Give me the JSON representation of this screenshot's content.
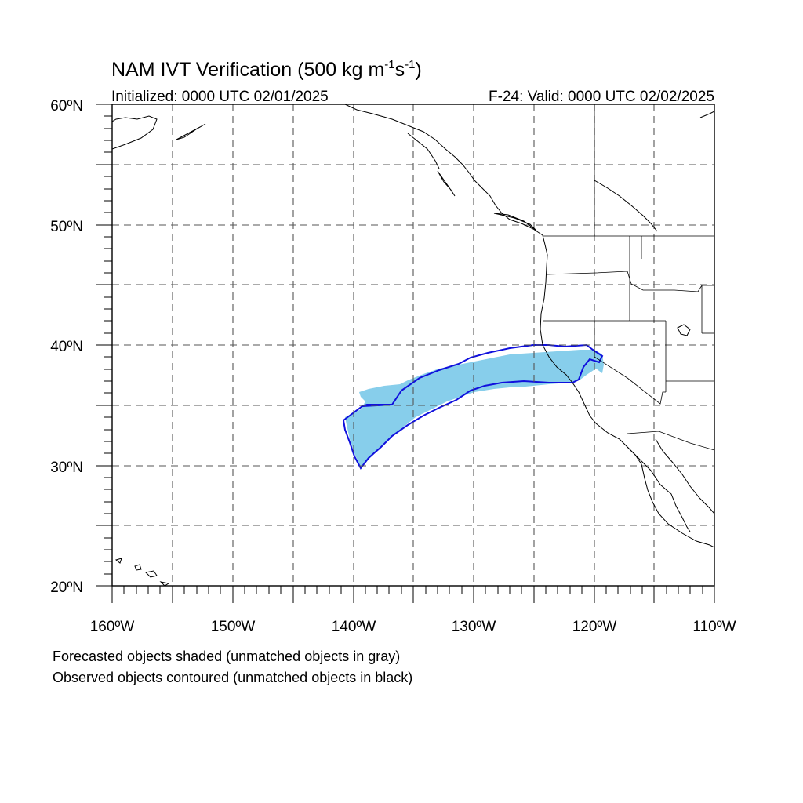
{
  "title": {
    "main": "NAM IVT Verification (500 kg m",
    "sup1": "-1",
    "mid": "s",
    "sup2": "-1",
    "end": ")"
  },
  "initialized": "Initialized: 0000 UTC 02/01/2025",
  "valid": "F-24: Valid: 0000 UTC 02/02/2025",
  "map": {
    "lon_range": [
      -160,
      -110
    ],
    "lat_range": [
      20,
      60
    ],
    "lon_labels": [
      "160ºW",
      "150ºW",
      "140ºW",
      "130ºW",
      "120ºW",
      "110ºW"
    ],
    "lat_labels": [
      "60ºN",
      "50ºN",
      "40ºN",
      "30ºN",
      "20ºN"
    ],
    "grid_interval_deg": 5,
    "grid": "dashed",
    "forecast_fill_color": "#87ceeb",
    "observed_contour_color": "#1010dd"
  },
  "notes": {
    "line1": "Forecasted objects shaded (unmatched objects in gray)",
    "line2": "Observed objects contoured (unmatched objects in black)"
  }
}
